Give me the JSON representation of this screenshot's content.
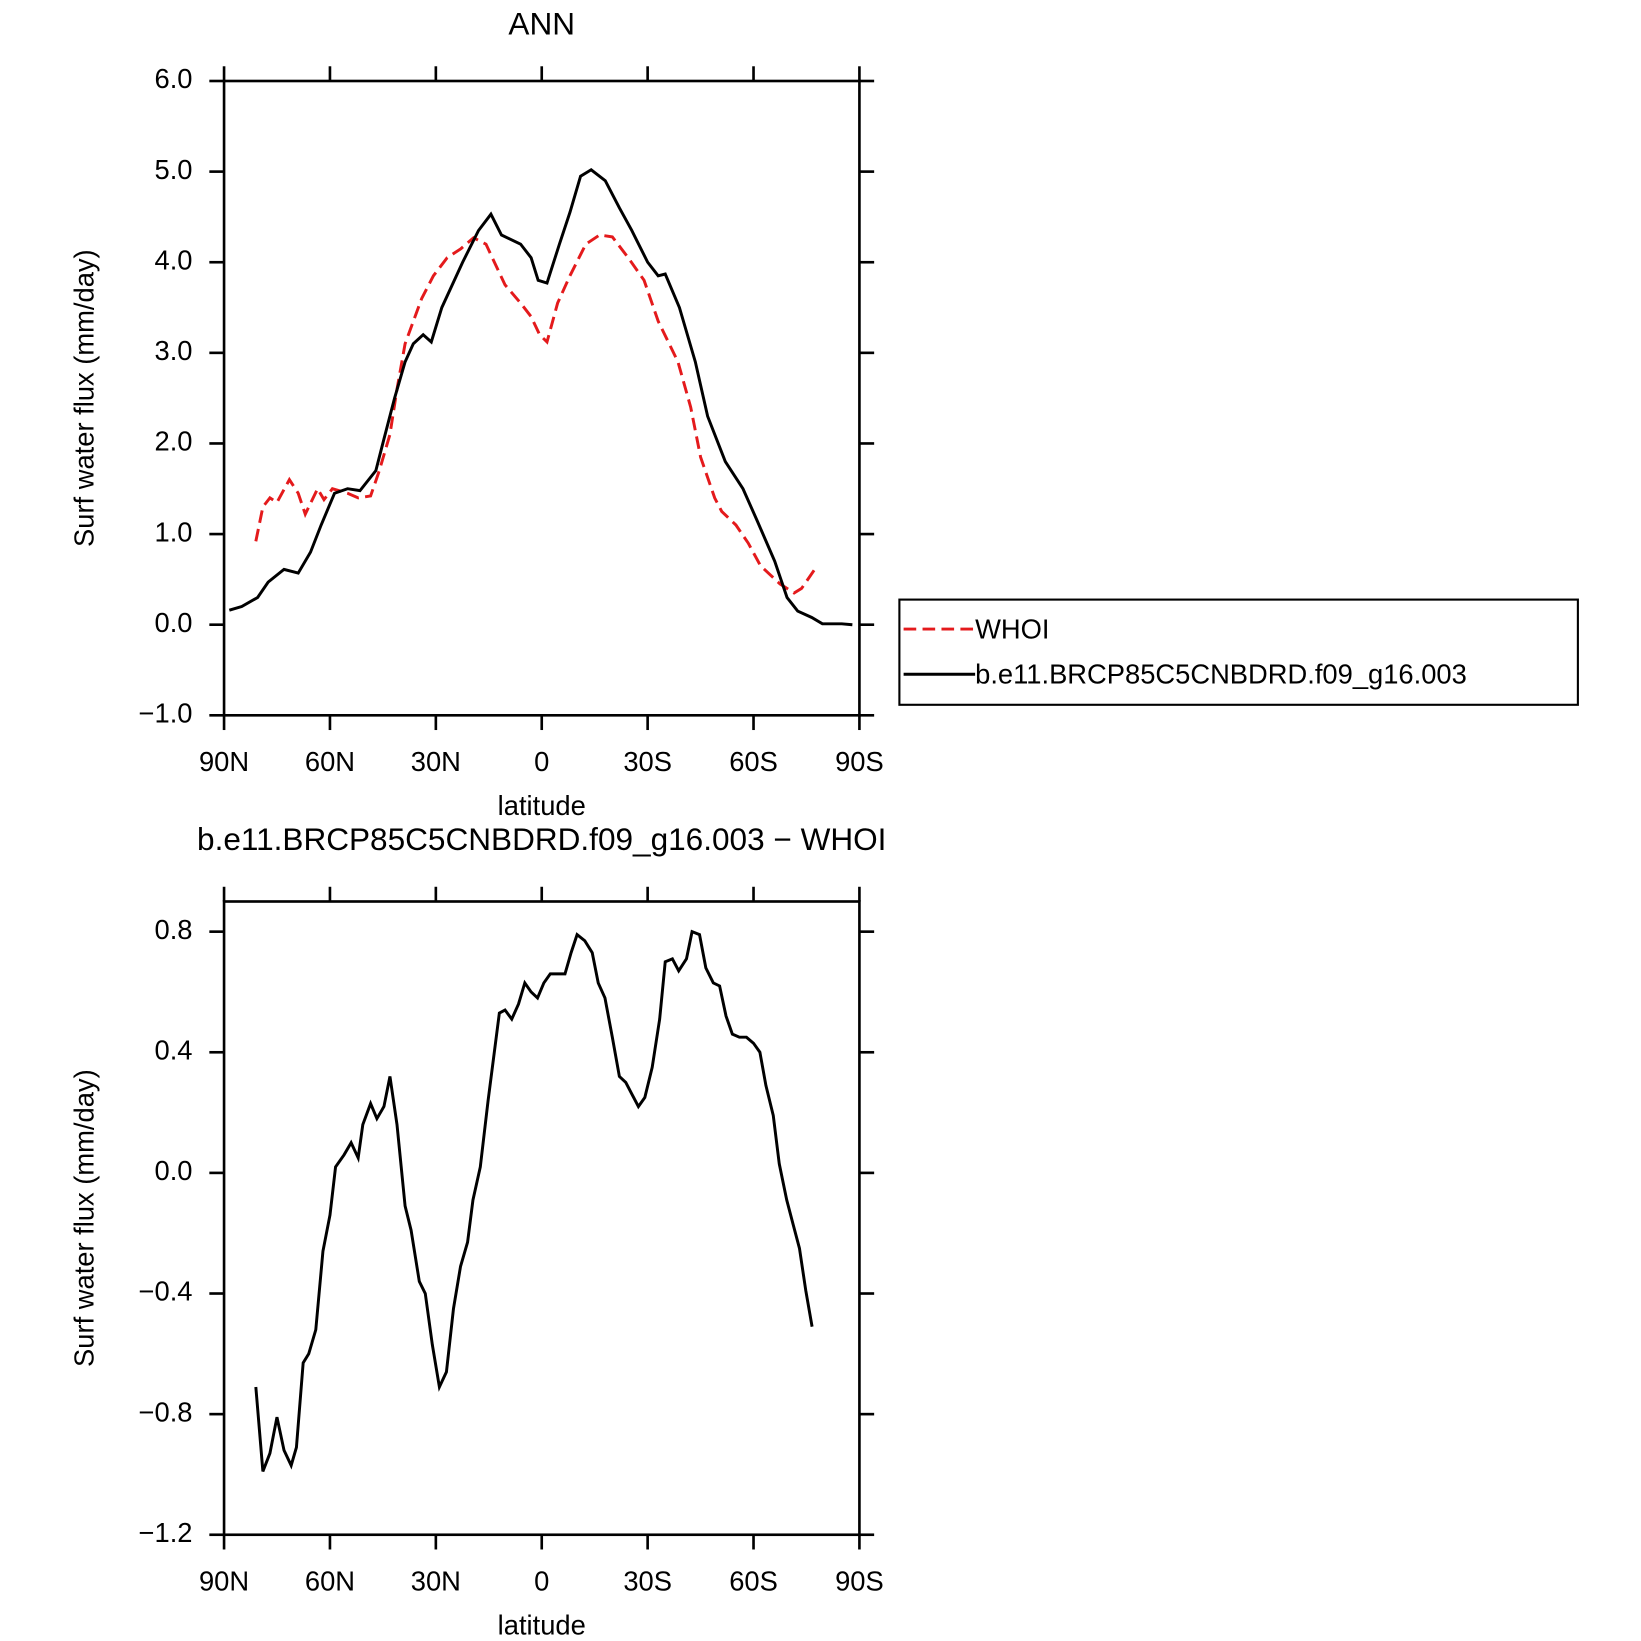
{
  "chart_data": [
    {
      "type": "line",
      "title": "ANN",
      "x_label": "latitude",
      "y_label": "Surf water flux (mm/day)",
      "xlim": [
        90,
        -90
      ],
      "ylim": [
        -1,
        6
      ],
      "xticks": [
        {
          "value": 90,
          "label": "90N"
        },
        {
          "value": 60,
          "label": "60N"
        },
        {
          "value": 30,
          "label": "30N"
        },
        0,
        {
          "value": -30,
          "label": "30S"
        },
        {
          "value": -60,
          "label": "60S"
        },
        {
          "value": -90,
          "label": "90S"
        }
      ],
      "yticks": [
        {
          "value": -1,
          "label": "−1.0"
        },
        {
          "value": 0,
          "label": "0.0"
        },
        {
          "value": 1,
          "label": "1.0"
        },
        {
          "value": 2,
          "label": "2.0"
        },
        {
          "value": 3,
          "label": "3.0"
        },
        {
          "value": 4,
          "label": "4.0"
        },
        {
          "value": 5,
          "label": "5.0"
        },
        {
          "value": 6,
          "label": "6.0"
        }
      ],
      "legend": "right",
      "series": [
        {
          "name": "WHOI",
          "color": "#e41a1c",
          "dash": true,
          "x": [
            81,
            79,
            77,
            75,
            71.5,
            69,
            67,
            63.5,
            61.7,
            59.3,
            55,
            52,
            48.5,
            46,
            43,
            41,
            38.7,
            34,
            30.7,
            26.8,
            22.9,
            19.3,
            15.8,
            13.4,
            10.4,
            6,
            3,
            0.6,
            -1.5,
            -4.5,
            -8,
            -12.5,
            -16.4,
            -20,
            -24.5,
            -29,
            -33,
            -38.6,
            -42.2,
            -45,
            -49,
            -51,
            -55,
            -58.5,
            -62,
            -67.5,
            -71.5,
            -73.6,
            -77.5
          ],
          "values": [
            0.92,
            1.3,
            1.4,
            1.35,
            1.6,
            1.45,
            1.22,
            1.5,
            1.38,
            1.5,
            1.45,
            1.4,
            1.42,
            1.7,
            2.1,
            2.6,
            3.1,
            3.6,
            3.85,
            4.05,
            4.15,
            4.27,
            4.2,
            4.0,
            3.75,
            3.55,
            3.4,
            3.2,
            3.12,
            3.55,
            3.85,
            4.2,
            4.3,
            4.28,
            4.05,
            3.8,
            3.35,
            2.9,
            2.4,
            1.85,
            1.4,
            1.25,
            1.1,
            0.9,
            0.65,
            0.45,
            0.35,
            0.4,
            0.62
          ]
        },
        {
          "name": "b.e11.BRCP85C5CNBDRD.f09_g16.003",
          "color": "#000000",
          "dash": false,
          "x": [
            88.5,
            85,
            80.5,
            77.5,
            73,
            69,
            65.5,
            62.5,
            58.7,
            55,
            51.5,
            47,
            44.7,
            41.7,
            38.7,
            36.4,
            33.6,
            31.3,
            28.3,
            22.4,
            17.9,
            14.4,
            11.4,
            6,
            3,
            1,
            -1.5,
            -5,
            -8,
            -11,
            -14,
            -18,
            -22,
            -25.5,
            -30,
            -33,
            -35,
            -39,
            -43.5,
            -47,
            -52,
            -57,
            -61,
            -66,
            -69.5,
            -72.5,
            -76.5,
            -79.5,
            -85,
            -88
          ],
          "values": [
            0.16,
            0.2,
            0.3,
            0.47,
            0.61,
            0.57,
            0.8,
            1.1,
            1.45,
            1.5,
            1.48,
            1.7,
            2.05,
            2.5,
            2.9,
            3.1,
            3.2,
            3.12,
            3.5,
            4.0,
            4.35,
            4.53,
            4.3,
            4.2,
            4.05,
            3.8,
            3.77,
            4.2,
            4.55,
            4.95,
            5.02,
            4.9,
            4.6,
            4.35,
            4.0,
            3.85,
            3.87,
            3.5,
            2.9,
            2.3,
            1.8,
            1.5,
            1.15,
            0.7,
            0.3,
            0.15,
            0.08,
            0.01,
            0.01,
            0
          ]
        }
      ]
    },
    {
      "type": "line",
      "title": "b.e11.BRCP85C5CNBDRD.f09_g16.003 − WHOI",
      "x_label": "latitude",
      "y_label": "Surf water flux (mm/day)",
      "xlim": [
        90,
        -90
      ],
      "ylim": [
        -1.2,
        0.9
      ],
      "xticks": [
        {
          "value": 90,
          "label": "90N"
        },
        {
          "value": 60,
          "label": "60N"
        },
        {
          "value": 30,
          "label": "30N"
        },
        0,
        {
          "value": -30,
          "label": "30S"
        },
        {
          "value": -60,
          "label": "60S"
        },
        {
          "value": -90,
          "label": "90S"
        }
      ],
      "yticks": [
        {
          "value": -1.2,
          "label": "−1.2"
        },
        {
          "value": -0.8,
          "label": "−0.8"
        },
        {
          "value": -0.4,
          "label": "−0.4"
        },
        {
          "value": 0,
          "label": "0.0"
        },
        0.4,
        0.8
      ],
      "series": [
        {
          "color": "#000000",
          "dash": false,
          "x": [
            81,
            79,
            77,
            75,
            73,
            71,
            69.5,
            67.6,
            66,
            64,
            62,
            60,
            58.4,
            56,
            54,
            52,
            50.7,
            48.5,
            46.7,
            44.7,
            43,
            41,
            38.7,
            37,
            34.7,
            33,
            31,
            29,
            27,
            25,
            23,
            21,
            19.5,
            17.4,
            15.2,
            12,
            10.4,
            8.5,
            6.6,
            4.8,
            3,
            1.2,
            -0.6,
            -2.4,
            -4.5,
            -6.6,
            -8.3,
            -10,
            -12.2,
            -14.3,
            -16,
            -17.9,
            -20,
            -22,
            -23.8,
            -25.6,
            -27.4,
            -29.2,
            -31.3,
            -33.4,
            -35,
            -37,
            -38.8,
            -41,
            -42.6,
            -44.7,
            -46.5,
            -48.6,
            -50.4,
            -52.2,
            -54,
            -56,
            -58,
            -60,
            -61.8,
            -63.5,
            -65.6,
            -67.3,
            -69.4,
            -71.2,
            -73,
            -74.8,
            -76.6
          ],
          "values": [
            -0.71,
            -0.99,
            -0.93,
            -0.81,
            -0.92,
            -0.97,
            -0.91,
            -0.63,
            -0.6,
            -0.52,
            -0.26,
            -0.14,
            0.02,
            0.06,
            0.1,
            0.05,
            0.16,
            0.23,
            0.18,
            0.22,
            0.32,
            0.16,
            -0.11,
            -0.19,
            -0.36,
            -0.4,
            -0.57,
            -0.71,
            -0.66,
            -0.45,
            -0.31,
            -0.23,
            -0.09,
            0.02,
            0.24,
            0.53,
            0.54,
            0.51,
            0.56,
            0.63,
            0.6,
            0.58,
            0.63,
            0.66,
            0.66,
            0.66,
            0.73,
            0.79,
            0.77,
            0.73,
            0.63,
            0.58,
            0.45,
            0.32,
            0.3,
            0.26,
            0.22,
            0.25,
            0.35,
            0.51,
            0.7,
            0.71,
            0.67,
            0.71,
            0.8,
            0.79,
            0.68,
            0.63,
            0.62,
            0.52,
            0.46,
            0.45,
            0.45,
            0.43,
            0.4,
            0.29,
            0.19,
            0.03,
            -0.09,
            -0.17,
            -0.25,
            -0.39,
            -0.51
          ]
        }
      ]
    }
  ]
}
